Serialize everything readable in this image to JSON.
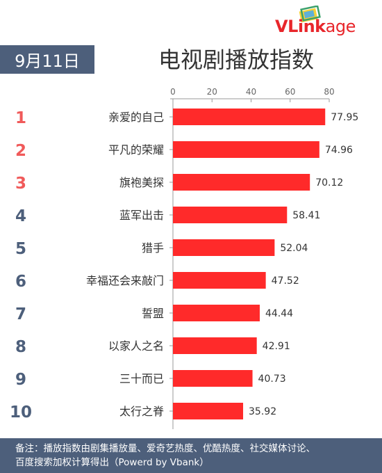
{
  "brand": {
    "logo_main": "VLink",
    "logo_rest": "age"
  },
  "header": {
    "date": "9月11日",
    "title": "电视剧播放指数"
  },
  "chart_data": {
    "type": "bar",
    "orientation": "horizontal",
    "title": "电视剧播放指数",
    "ranks": [
      "1",
      "2",
      "3",
      "4",
      "5",
      "6",
      "7",
      "8",
      "9",
      "10"
    ],
    "categories": [
      "亲爱的自己",
      "平凡的荣耀",
      "旗袍美探",
      "蓝军出击",
      "猎手",
      "幸福还会来敲门",
      "誓盟",
      "以家人之名",
      "三十而已",
      "太行之脊"
    ],
    "values": [
      77.95,
      74.96,
      70.12,
      58.41,
      52.04,
      47.52,
      44.44,
      42.91,
      40.73,
      35.92
    ],
    "value_labels": [
      "77.95",
      "74.96",
      "70.12",
      "58.41",
      "52.04",
      "47.52",
      "44.44",
      "42.91",
      "40.73",
      "35.92"
    ],
    "xticks": [
      "0",
      "20",
      "40",
      "60",
      "80"
    ],
    "xlim": [
      0,
      80
    ],
    "axis_position": "top",
    "grid": false,
    "colors": {
      "bar": "#ff2a2a",
      "rank_top3": "#f05a5a",
      "rank_other": "#4d5f7b"
    }
  },
  "footer": {
    "line1": "备注：播放指数由剧集播放量、爱奇艺热度、优酷热度、社交媒体讨论、",
    "line2": "百度搜索加权计算得出（Powerd by Vbank）"
  }
}
